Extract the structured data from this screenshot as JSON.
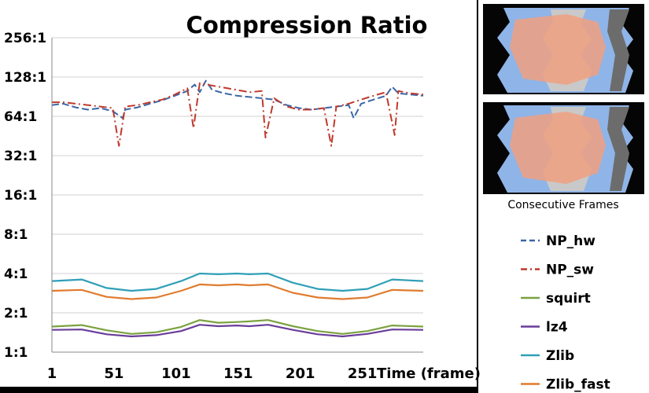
{
  "chart_data": {
    "type": "line",
    "title": "Compression Ratio",
    "xlabel": "Time (frame)",
    "ylabel": "",
    "y_scale": "log2",
    "ylim": [
      1,
      256
    ],
    "xlim": [
      1,
      300
    ],
    "x_ticks": [
      1,
      51,
      101,
      151,
      201,
      251
    ],
    "x_tick_labels": [
      "1",
      "51",
      "101",
      "151",
      "201",
      "251"
    ],
    "y_ticks": [
      1,
      2,
      4,
      8,
      16,
      32,
      64,
      128,
      256
    ],
    "y_tick_labels": [
      "1:1",
      "2:1",
      "4:1",
      "8:1",
      "16:1",
      "32:1",
      "64:1",
      "128:1",
      "256:1"
    ],
    "grid": "horizontal",
    "legend_position": "right",
    "series": [
      {
        "name": "NP_hw",
        "style": "dashed",
        "color": "#3a66a8",
        "x": [
          1,
          10,
          20,
          30,
          40,
          50,
          58,
          60,
          70,
          80,
          90,
          100,
          110,
          116,
          120,
          125,
          130,
          140,
          150,
          160,
          170,
          180,
          190,
          200,
          210,
          220,
          230,
          240,
          244,
          250,
          260,
          270,
          275,
          280,
          290,
          300
        ],
        "y": [
          78,
          80,
          75,
          72,
          74,
          70,
          62,
          72,
          75,
          80,
          85,
          92,
          100,
          112,
          98,
          120,
          102,
          96,
          92,
          90,
          88,
          86,
          78,
          74,
          72,
          74,
          76,
          78,
          62,
          80,
          86,
          92,
          108,
          96,
          94,
          92
        ]
      },
      {
        "name": "NP_sw",
        "style": "dashdot",
        "color": "#c0392b",
        "x": [
          1,
          10,
          20,
          30,
          40,
          50,
          55,
          60,
          70,
          80,
          90,
          100,
          110,
          115,
          120,
          130,
          140,
          150,
          160,
          170,
          173,
          180,
          190,
          200,
          210,
          220,
          226,
          230,
          240,
          250,
          260,
          270,
          277,
          280,
          290,
          300
        ],
        "y": [
          82,
          82,
          80,
          78,
          76,
          74,
          38,
          76,
          78,
          82,
          86,
          94,
          105,
          52,
          115,
          110,
          106,
          102,
          98,
          100,
          44,
          88,
          76,
          72,
          72,
          74,
          38,
          76,
          80,
          86,
          92,
          98,
          46,
          100,
          96,
          94
        ]
      },
      {
        "name": "squirt",
        "style": "solid",
        "color": "#7ba23f",
        "x": [
          1,
          25,
          45,
          65,
          85,
          105,
          120,
          135,
          150,
          160,
          175,
          195,
          215,
          235,
          255,
          275,
          300
        ],
        "y": [
          1.57,
          1.61,
          1.47,
          1.38,
          1.42,
          1.56,
          1.76,
          1.68,
          1.7,
          1.72,
          1.76,
          1.58,
          1.45,
          1.38,
          1.45,
          1.6,
          1.57
        ]
      },
      {
        "name": "lz4",
        "style": "solid",
        "color": "#6a3d9a",
        "x": [
          1,
          25,
          45,
          65,
          85,
          105,
          120,
          135,
          150,
          160,
          175,
          195,
          215,
          235,
          255,
          275,
          300
        ],
        "y": [
          1.48,
          1.49,
          1.37,
          1.32,
          1.35,
          1.45,
          1.62,
          1.58,
          1.6,
          1.58,
          1.62,
          1.48,
          1.37,
          1.32,
          1.38,
          1.49,
          1.48
        ]
      },
      {
        "name": "Zlib",
        "style": "solid",
        "color": "#2f9fb7",
        "x": [
          1,
          25,
          45,
          65,
          85,
          105,
          120,
          135,
          150,
          160,
          175,
          195,
          215,
          235,
          255,
          275,
          300
        ],
        "y": [
          3.5,
          3.6,
          3.1,
          2.95,
          3.05,
          3.5,
          4.0,
          3.95,
          4.0,
          3.95,
          4.0,
          3.4,
          3.05,
          2.95,
          3.05,
          3.6,
          3.5
        ]
      },
      {
        "name": "Zlib_fast",
        "style": "solid",
        "color": "#e07b2e",
        "x": [
          1,
          25,
          45,
          65,
          85,
          105,
          120,
          135,
          150,
          160,
          175,
          195,
          215,
          235,
          255,
          275,
          300
        ],
        "y": [
          2.95,
          3.0,
          2.65,
          2.55,
          2.62,
          2.95,
          3.3,
          3.25,
          3.3,
          3.25,
          3.3,
          2.85,
          2.62,
          2.55,
          2.62,
          3.0,
          2.95
        ]
      }
    ]
  },
  "side_panel": {
    "caption": "Consecutive Frames",
    "frames": [
      {
        "name": "frame-a"
      },
      {
        "name": "frame-b"
      }
    ]
  }
}
